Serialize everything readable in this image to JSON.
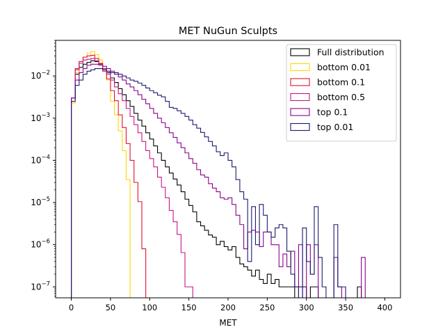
{
  "chart_data": {
    "type": "histogram-step",
    "title": "MET NuGun Sculpts",
    "xlabel": "MET",
    "ylabel": "",
    "xlim": [
      -20,
      420
    ],
    "ylim": [
      5.5e-08,
      0.07
    ],
    "yscale": "log",
    "bin_width": 5,
    "x_ticks": [
      0,
      50,
      100,
      150,
      200,
      250,
      300,
      350,
      400
    ],
    "x_tick_labels": [
      "0",
      "50",
      "100",
      "150",
      "200",
      "250",
      "300",
      "350",
      "400"
    ],
    "y_ticks": [
      1e-07,
      1e-06,
      1e-05,
      0.0001,
      0.001,
      0.01
    ],
    "y_tick_labels": [
      {
        "base": "10",
        "exp": "−7"
      },
      {
        "base": "10",
        "exp": "−6"
      },
      {
        "base": "10",
        "exp": "−5"
      },
      {
        "base": "10",
        "exp": "−4"
      },
      {
        "base": "10",
        "exp": "−3"
      },
      {
        "base": "10",
        "exp": "−2"
      }
    ],
    "legend_position": "top-right",
    "series": [
      {
        "name": "Full distribution",
        "color": "#000000",
        "bins": [
          [
            0,
            0.003
          ],
          [
            5,
            0.011
          ],
          [
            10,
            0.016
          ],
          [
            15,
            0.019
          ],
          [
            20,
            0.021
          ],
          [
            25,
            0.023
          ],
          [
            30,
            0.022
          ],
          [
            35,
            0.019
          ],
          [
            40,
            0.015
          ],
          [
            45,
            0.012
          ],
          [
            50,
            0.009
          ],
          [
            55,
            0.007
          ],
          [
            60,
            0.005
          ],
          [
            65,
            0.0036
          ],
          [
            70,
            0.0026
          ],
          [
            75,
            0.0019
          ],
          [
            80,
            0.0013
          ],
          [
            85,
            0.0009
          ],
          [
            90,
            0.00065
          ],
          [
            95,
            0.00045
          ],
          [
            100,
            0.00032
          ],
          [
            105,
            0.00022
          ],
          [
            110,
            0.00015
          ],
          [
            115,
            0.0001
          ],
          [
            120,
            7e-05
          ],
          [
            125,
            5e-05
          ],
          [
            130,
            3.6e-05
          ],
          [
            135,
            2.6e-05
          ],
          [
            140,
            1.8e-05
          ],
          [
            145,
            1.2e-05
          ],
          [
            150,
            8.5e-06
          ],
          [
            155,
            6e-06
          ],
          [
            160,
            3.5e-06
          ],
          [
            165,
            2.8e-06
          ],
          [
            170,
            2.2e-06
          ],
          [
            175,
            1.7e-06
          ],
          [
            180,
            1.5e-06
          ],
          [
            185,
            1e-06
          ],
          [
            190,
            1.2e-06
          ],
          [
            195,
            9e-07
          ],
          [
            200,
            7.5e-07
          ],
          [
            205,
            9e-07
          ],
          [
            210,
            5e-07
          ],
          [
            215,
            3.5e-07
          ],
          [
            220,
            3e-07
          ],
          [
            225,
            2.5e-07
          ],
          [
            230,
            1.8e-07
          ],
          [
            235,
            2.5e-07
          ],
          [
            240,
            1.5e-07
          ],
          [
            245,
            1.2e-07
          ],
          [
            250,
            2e-07
          ],
          [
            255,
            1.2e-07
          ],
          [
            260,
            1.5e-07
          ],
          [
            265,
            1e-07
          ],
          [
            270,
            1e-07
          ],
          [
            275,
            1e-07
          ],
          [
            280,
            1e-07
          ],
          [
            290,
            1e-07
          ],
          [
            295,
            1e-07
          ],
          [
            305,
            1e-07
          ],
          [
            310,
            1e-07
          ],
          [
            365,
            1e-07
          ]
        ]
      },
      {
        "name": "bottom 0.01",
        "color": "#ffd700",
        "bins": [
          [
            0,
            0.0023
          ],
          [
            5,
            0.012
          ],
          [
            10,
            0.022
          ],
          [
            15,
            0.028
          ],
          [
            20,
            0.035
          ],
          [
            25,
            0.038
          ],
          [
            30,
            0.032
          ],
          [
            35,
            0.024
          ],
          [
            40,
            0.015
          ],
          [
            45,
            0.008
          ],
          [
            50,
            0.0025
          ],
          [
            55,
            0.0012
          ],
          [
            60,
            0.0005
          ],
          [
            65,
            0.00017
          ],
          [
            70,
            3.5e-05
          ]
        ]
      },
      {
        "name": "bottom 0.1",
        "color": "#e01030",
        "bins": [
          [
            0,
            0.003
          ],
          [
            5,
            0.015
          ],
          [
            10,
            0.022
          ],
          [
            15,
            0.028
          ],
          [
            20,
            0.03
          ],
          [
            25,
            0.031
          ],
          [
            30,
            0.026
          ],
          [
            35,
            0.02
          ],
          [
            40,
            0.013
          ],
          [
            45,
            0.0085
          ],
          [
            50,
            0.0045
          ],
          [
            55,
            0.0026
          ],
          [
            60,
            0.0012
          ],
          [
            65,
            0.0006
          ],
          [
            70,
            0.00025
          ],
          [
            75,
            0.0001
          ],
          [
            80,
            3e-05
          ],
          [
            85,
            1.05e-05
          ],
          [
            90,
            8e-07
          ]
        ]
      },
      {
        "name": "bottom 0.5",
        "color": "#c71585",
        "bins": [
          [
            0,
            0.003
          ],
          [
            5,
            0.014
          ],
          [
            10,
            0.02
          ],
          [
            15,
            0.024
          ],
          [
            20,
            0.025
          ],
          [
            25,
            0.026
          ],
          [
            30,
            0.023
          ],
          [
            35,
            0.019
          ],
          [
            40,
            0.015
          ],
          [
            45,
            0.011
          ],
          [
            50,
            0.008
          ],
          [
            55,
            0.0055
          ],
          [
            60,
            0.0038
          ],
          [
            65,
            0.0026
          ],
          [
            70,
            0.0017
          ],
          [
            75,
            0.0011
          ],
          [
            80,
            0.0007
          ],
          [
            85,
            0.00045
          ],
          [
            90,
            0.00028
          ],
          [
            95,
            0.00017
          ],
          [
            100,
            0.00011
          ],
          [
            105,
            7e-05
          ],
          [
            110,
            4e-05
          ],
          [
            115,
            2.3e-05
          ],
          [
            120,
            1.3e-05
          ],
          [
            125,
            6.5e-06
          ],
          [
            130,
            3.5e-06
          ],
          [
            135,
            1.75e-06
          ],
          [
            140,
            6.5e-07
          ],
          [
            145,
            1e-07
          ],
          [
            150,
            1e-07
          ]
        ]
      },
      {
        "name": "top 0.1",
        "color": "#8b008b",
        "bins": [
          [
            0,
            0.003
          ],
          [
            5,
            0.008
          ],
          [
            10,
            0.012
          ],
          [
            15,
            0.015
          ],
          [
            20,
            0.018
          ],
          [
            25,
            0.019
          ],
          [
            30,
            0.019
          ],
          [
            35,
            0.018
          ],
          [
            40,
            0.017
          ],
          [
            45,
            0.015
          ],
          [
            50,
            0.013
          ],
          [
            55,
            0.011
          ],
          [
            60,
            0.0095
          ],
          [
            65,
            0.008
          ],
          [
            70,
            0.0065
          ],
          [
            75,
            0.0055
          ],
          [
            80,
            0.0045
          ],
          [
            85,
            0.0036
          ],
          [
            90,
            0.0028
          ],
          [
            95,
            0.0022
          ],
          [
            100,
            0.0017
          ],
          [
            105,
            0.0013
          ],
          [
            110,
            0.001
          ],
          [
            115,
            0.00078
          ],
          [
            120,
            0.0006
          ],
          [
            125,
            0.00045
          ],
          [
            130,
            0.00035
          ],
          [
            135,
            0.00026
          ],
          [
            140,
            0.0002
          ],
          [
            145,
            0.00015
          ],
          [
            150,
            0.00011
          ],
          [
            155,
            8.5e-05
          ],
          [
            160,
            6e-05
          ],
          [
            165,
            4.5e-05
          ],
          [
            170,
            4e-05
          ],
          [
            175,
            2.8e-05
          ],
          [
            180,
            2.2e-05
          ],
          [
            185,
            1.8e-05
          ],
          [
            190,
            1.3e-05
          ],
          [
            195,
            1.2e-05
          ],
          [
            200,
            1.3e-05
          ],
          [
            205,
            9e-06
          ],
          [
            210,
            5e-06
          ],
          [
            215,
            3e-06
          ],
          [
            220,
            8e-07
          ],
          [
            225,
            2e-06
          ],
          [
            230,
            2.2e-06
          ],
          [
            235,
            2e-06
          ],
          [
            240,
            9e-07
          ],
          [
            245,
            2e-06
          ],
          [
            250,
            2e-06
          ],
          [
            255,
            1e-06
          ],
          [
            260,
            1e-06
          ],
          [
            265,
            3e-07
          ],
          [
            270,
            6e-07
          ],
          [
            275,
            3e-07
          ],
          [
            280,
            7e-07
          ],
          [
            285,
            1e-07
          ],
          [
            290,
            1e-06
          ],
          [
            300,
            1e-06
          ],
          [
            305,
            2e-07
          ],
          [
            310,
            1e-06
          ],
          [
            335,
            5e-07
          ],
          [
            340,
            1e-07
          ],
          [
            370,
            5e-07
          ]
        ]
      },
      {
        "name": "top 0.01",
        "color": "#191970",
        "bins": [
          [
            0,
            0.0025
          ],
          [
            5,
            0.006
          ],
          [
            10,
            0.008
          ],
          [
            15,
            0.011
          ],
          [
            20,
            0.013
          ],
          [
            25,
            0.014
          ],
          [
            30,
            0.015
          ],
          [
            35,
            0.015
          ],
          [
            40,
            0.014
          ],
          [
            45,
            0.013
          ],
          [
            50,
            0.012
          ],
          [
            55,
            0.012
          ],
          [
            60,
            0.011
          ],
          [
            65,
            0.01
          ],
          [
            70,
            0.009
          ],
          [
            75,
            0.008
          ],
          [
            80,
            0.0075
          ],
          [
            85,
            0.0068
          ],
          [
            90,
            0.006
          ],
          [
            95,
            0.0052
          ],
          [
            100,
            0.0045
          ],
          [
            105,
            0.004
          ],
          [
            110,
            0.0035
          ],
          [
            115,
            0.0032
          ],
          [
            120,
            0.0025
          ],
          [
            125,
            0.0018
          ],
          [
            130,
            0.0017
          ],
          [
            135,
            0.0015
          ],
          [
            140,
            0.0013
          ],
          [
            145,
            0.0011
          ],
          [
            150,
            0.0009
          ],
          [
            155,
            0.0007
          ],
          [
            160,
            0.00058
          ],
          [
            165,
            0.00046
          ],
          [
            170,
            0.00036
          ],
          [
            175,
            0.00028
          ],
          [
            180,
            0.00022
          ],
          [
            185,
            0.00016
          ],
          [
            190,
            0.00013
          ],
          [
            195,
            0.00015
          ],
          [
            200,
            0.0001
          ],
          [
            205,
            7e-05
          ],
          [
            210,
            3.5e-05
          ],
          [
            215,
            1.8e-05
          ],
          [
            220,
            1.2e-05
          ],
          [
            225,
            4e-07
          ],
          [
            230,
            8e-06
          ],
          [
            235,
            1e-06
          ],
          [
            240,
            9e-06
          ],
          [
            245,
            5e-06
          ],
          [
            250,
            2e-06
          ],
          [
            255,
            1.5e-06
          ],
          [
            260,
            2.5e-06
          ],
          [
            265,
            3e-06
          ],
          [
            270,
            2.5e-06
          ],
          [
            275,
            7e-07
          ],
          [
            280,
            2e-07
          ],
          [
            285,
            1e-07
          ],
          [
            295,
            2.5e-06
          ],
          [
            300,
            4e-07
          ],
          [
            305,
            2e-07
          ],
          [
            310,
            8e-06
          ],
          [
            315,
            5e-07
          ],
          [
            320,
            1e-07
          ],
          [
            335,
            3e-06
          ],
          [
            340,
            1e-07
          ],
          [
            345,
            1e-07
          ]
        ]
      }
    ]
  }
}
